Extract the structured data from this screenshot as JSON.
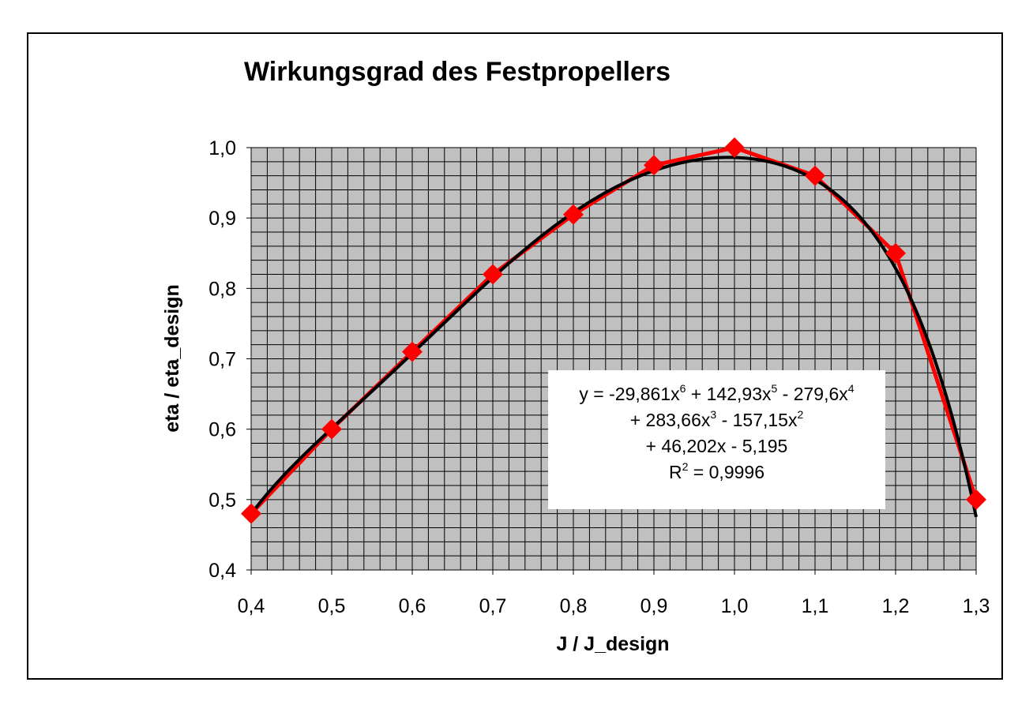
{
  "chart_data": {
    "type": "scatter",
    "title": "Wirkungsgrad des Festpropellers",
    "xlabel": "J / J_design",
    "ylabel": "eta / eta_design",
    "xlim": [
      0.4,
      1.3
    ],
    "ylim": [
      0.4,
      1.0
    ],
    "x_ticks": [
      "0,4",
      "0,5",
      "0,6",
      "0,7",
      "0,8",
      "0,9",
      "1,0",
      "1,1",
      "1,2",
      "1,3"
    ],
    "y_ticks": [
      "0,4",
      "0,5",
      "0,6",
      "0,7",
      "0,8",
      "0,9",
      "1,0"
    ],
    "grid": true,
    "plot_background": "#c0c0c0",
    "grid_color": "#000000",
    "series": [
      {
        "marker": "diamond",
        "color": "#ff0000",
        "connected": true,
        "x": [
          0.4,
          0.5,
          0.6,
          0.7,
          0.8,
          0.9,
          1.0,
          1.1,
          1.2,
          1.3
        ],
        "y": [
          0.48,
          0.6,
          0.71,
          0.82,
          0.905,
          0.975,
          1.0,
          0.96,
          0.85,
          0.5
        ]
      }
    ],
    "trendline": {
      "type": "polynomial",
      "order": 6,
      "color": "#000000",
      "coefficients": [
        -29.861,
        142.93,
        -279.6,
        283.66,
        -157.15,
        46.202,
        -5.195
      ],
      "equation_lines": [
        {
          "text": "y = -29,861x",
          "sup": "6",
          "rest": " + 142,93x",
          "sup2": "5",
          "rest2": " - 279,6x",
          "sup3": "4",
          "rest3": ""
        },
        {
          "text": "+ 283,66x",
          "sup": "3",
          "rest": " - 157,15x",
          "sup2": "2",
          "rest2": "",
          "sup3": "",
          "rest3": ""
        },
        {
          "text": "+ 46,202x - 5,195",
          "sup": "",
          "rest": "",
          "sup2": "",
          "rest2": "",
          "sup3": "",
          "rest3": ""
        },
        {
          "text": "R",
          "sup": "2",
          "rest": " = 0,9996",
          "sup2": "",
          "rest2": "",
          "sup3": "",
          "rest3": ""
        }
      ]
    }
  }
}
